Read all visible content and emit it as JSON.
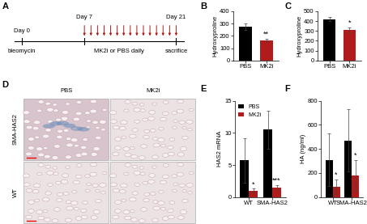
{
  "timeline": {
    "title": "A",
    "start": "Day 0",
    "dose_start": "Day 7",
    "end": "Day 21",
    "start_label": "bleomycin",
    "dose_label": "MK2i or PBS daily",
    "end_label": "sacrifice"
  },
  "micrographs": {
    "title": "D",
    "columns": [
      "PBS",
      "MK2i"
    ],
    "rows": [
      "SMA-HAS2",
      "WT"
    ]
  },
  "chart_data": [
    {
      "type": "bar",
      "title": "B",
      "y_label": "Hydroxyproline",
      "categories": [
        "PBS",
        "MK2i"
      ],
      "values": [
        275,
        165
      ],
      "errors": [
        25,
        12
      ],
      "colors": [
        "#000000",
        "#b01c1c"
      ],
      "ylim": [
        0,
        400
      ],
      "yticks": [
        0,
        100,
        200,
        300,
        400
      ],
      "annotations": [
        {
          "text": "**",
          "category": "MK2i"
        }
      ]
    },
    {
      "type": "bar",
      "title": "C",
      "y_label": "Hydroxyproline",
      "categories": [
        "PBS",
        "MK2i"
      ],
      "values": [
        420,
        310
      ],
      "errors": [
        20,
        28
      ],
      "colors": [
        "#000000",
        "#b01c1c"
      ],
      "ylim": [
        0,
        500
      ],
      "yticks": [
        0,
        100,
        200,
        300,
        400,
        500
      ],
      "annotations": [
        {
          "text": "*",
          "category": "MK2i"
        }
      ]
    },
    {
      "type": "bar",
      "title": "E",
      "y_label": "HAS2 mRNA",
      "categories": [
        "WT",
        "SMA-HAS2"
      ],
      "series": [
        {
          "name": "PBS",
          "color": "#000000",
          "values": [
            5.7,
            10.5
          ],
          "errors": [
            3.5,
            3.0
          ]
        },
        {
          "name": "MK2i",
          "color": "#b01c1c",
          "values": [
            1.0,
            1.5
          ],
          "errors": [
            0.3,
            0.4
          ]
        }
      ],
      "ylim": [
        0,
        15
      ],
      "yticks": [
        0,
        5,
        10,
        15
      ],
      "legend": "upper left",
      "annotations": [
        {
          "text": "*",
          "category": "WT",
          "series": "MK2i"
        },
        {
          "text": "***",
          "category": "SMA-HAS2",
          "series": "MK2i"
        }
      ]
    },
    {
      "type": "bar",
      "title": "F",
      "y_label": "HA (ng/ml)",
      "categories": [
        "WT",
        "SMA-HAS2"
      ],
      "series": [
        {
          "name": "PBS",
          "color": "#000000",
          "values": [
            310,
            470
          ],
          "errors": [
            220,
            260
          ]
        },
        {
          "name": "MK2i",
          "color": "#b01c1c",
          "values": [
            85,
            180
          ],
          "errors": [
            60,
            130
          ]
        }
      ],
      "ylim": [
        0,
        800
      ],
      "yticks": [
        0,
        200,
        400,
        600,
        800
      ],
      "annotations": [
        {
          "text": "*",
          "category": "WT",
          "series": "MK2i"
        },
        {
          "text": "*",
          "category": "SMA-HAS2",
          "series": "MK2i"
        }
      ]
    }
  ]
}
